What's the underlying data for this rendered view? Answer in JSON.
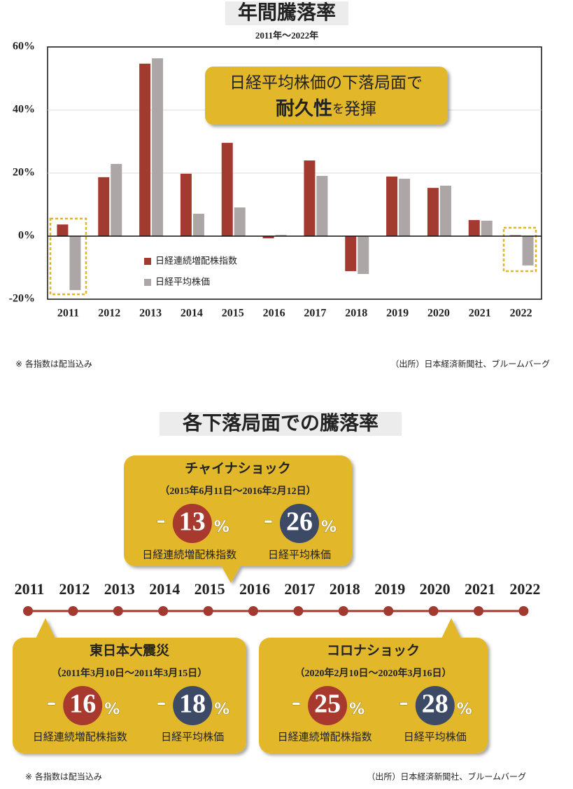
{
  "chart_data": {
    "type": "bar",
    "title": "年間騰落率",
    "subtitle": "2011年～2022年",
    "categories": [
      "2011",
      "2012",
      "2013",
      "2014",
      "2015",
      "2016",
      "2017",
      "2018",
      "2019",
      "2020",
      "2021",
      "2022"
    ],
    "series": [
      {
        "name": "日経連続増配株指数",
        "color": "#a33a2f",
        "values": [
          3.7,
          18.7,
          54.7,
          19.8,
          29.6,
          -0.7,
          24.0,
          -11.1,
          18.9,
          15.3,
          5.1,
          0.3
        ]
      },
      {
        "name": "日経平均株価",
        "color": "#aca6a6",
        "values": [
          -17.1,
          22.9,
          56.4,
          7.1,
          9.1,
          0.4,
          19.1,
          -12.0,
          18.2,
          16.0,
          4.9,
          -9.3
        ]
      }
    ],
    "ylim": [
      -20,
      60
    ],
    "yticks": [
      {
        "value": -20,
        "label": "-20%"
      },
      {
        "value": 0,
        "label": "0%"
      },
      {
        "value": 20,
        "label": "20%"
      },
      {
        "value": 40,
        "label": "40%"
      },
      {
        "value": 60,
        "label": "60%"
      }
    ],
    "grid": true,
    "legend": "lower-left",
    "annotation": {
      "line1": "日経平均株価の下落局面で",
      "line2": [
        "耐久性",
        "を",
        "発揮"
      ]
    }
  },
  "notes": {
    "top_left": "※ 各指数は配当込み",
    "top_right": "（出所）日本経済新聞社、ブルームバーグ",
    "bottom_left": "※ 各指数は配当込み",
    "bottom_right": "（出所）日本経済新聞社、ブルームバーグ"
  },
  "timeline": {
    "title": "各下落局面での騰落率",
    "years": [
      "2011",
      "2012",
      "2013",
      "2014",
      "2015",
      "2016",
      "2017",
      "2018",
      "2019",
      "2020",
      "2021",
      "2022"
    ],
    "events": [
      {
        "title": "チャイナショック",
        "period": "（2015年6月11日～2016年2月12日）",
        "items": [
          {
            "sign": "-",
            "value": 13,
            "unit": "%",
            "label": "日経連続増配株指数"
          },
          {
            "sign": "-",
            "value": 26,
            "unit": "%",
            "label": "日経平均株価"
          }
        ]
      },
      {
        "title": "東日本大震災",
        "period": "（2011年3月10日～2011年3月15日）",
        "items": [
          {
            "sign": "-",
            "value": 16,
            "unit": "%",
            "label": "日経連続増配株指数"
          },
          {
            "sign": "-",
            "value": 18,
            "unit": "%",
            "label": "日経平均株価"
          }
        ]
      },
      {
        "title": "コロナショック",
        "period": "（2020年2月10日～2020年3月16日）",
        "items": [
          {
            "sign": "-",
            "value": 25,
            "unit": "%",
            "label": "日経連続増配株指数"
          },
          {
            "sign": "-",
            "value": 28,
            "unit": "%",
            "label": "日経平均株価"
          }
        ]
      }
    ]
  }
}
